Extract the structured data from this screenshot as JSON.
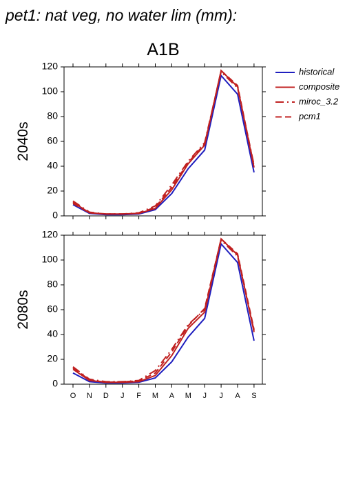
{
  "chart_data": [
    {
      "type": "line",
      "title": "pet1: nat veg, no water lim (mm):",
      "subtitle": "A1B",
      "ylabel": "2040s",
      "ylim": [
        0,
        120
      ],
      "yticks": [
        0,
        20,
        40,
        60,
        80,
        100,
        120
      ],
      "series": [
        {
          "name": "historical",
          "color": "#1f1fbf",
          "dash": "solid",
          "values": [
            9,
            2,
            1,
            1,
            1.5,
            5,
            18,
            38,
            53,
            113,
            98,
            35
          ]
        },
        {
          "name": "composite",
          "color": "#c02020",
          "dash": "solid",
          "values": [
            11,
            2.5,
            1.5,
            1.5,
            2,
            6,
            21,
            42,
            57,
            117,
            104,
            39
          ]
        },
        {
          "name": "miroc_3.2",
          "color": "#c02020",
          "dash": "dashdot",
          "values": [
            12,
            3,
            1.5,
            1.5,
            2.5,
            8,
            25,
            44,
            59,
            116,
            103,
            41
          ]
        },
        {
          "name": "pcm1",
          "color": "#c02020",
          "dash": "dashed",
          "values": [
            10,
            2.5,
            1.5,
            1.5,
            2,
            7,
            23,
            43,
            58,
            117,
            105,
            40
          ]
        }
      ]
    },
    {
      "type": "line",
      "ylabel": "2080s",
      "categories": [
        "O",
        "N",
        "D",
        "J",
        "F",
        "M",
        "A",
        "M",
        "J",
        "J",
        "A",
        "S"
      ],
      "ylim": [
        0,
        120
      ],
      "yticks": [
        0,
        20,
        40,
        60,
        80,
        100,
        120
      ],
      "series": [
        {
          "color": "#1f1fbf",
          "dash": "solid",
          "values": [
            9,
            2,
            1,
            1,
            1.5,
            5,
            18,
            38,
            53,
            113,
            98,
            35
          ]
        },
        {
          "color": "#c02020",
          "dash": "solid",
          "values": [
            12,
            3,
            1.5,
            1.5,
            2,
            7,
            23,
            45,
            58,
            117,
            104,
            42
          ]
        },
        {
          "color": "#c02020",
          "dash": "dashdot",
          "values": [
            14,
            4,
            2,
            2,
            3,
            11,
            28,
            48,
            60,
            116,
            103,
            43
          ]
        },
        {
          "color": "#c02020",
          "dash": "dashed",
          "values": [
            13,
            3.5,
            1.5,
            2,
            2.5,
            9,
            26,
            47,
            61,
            117,
            105,
            44
          ]
        }
      ]
    }
  ]
}
